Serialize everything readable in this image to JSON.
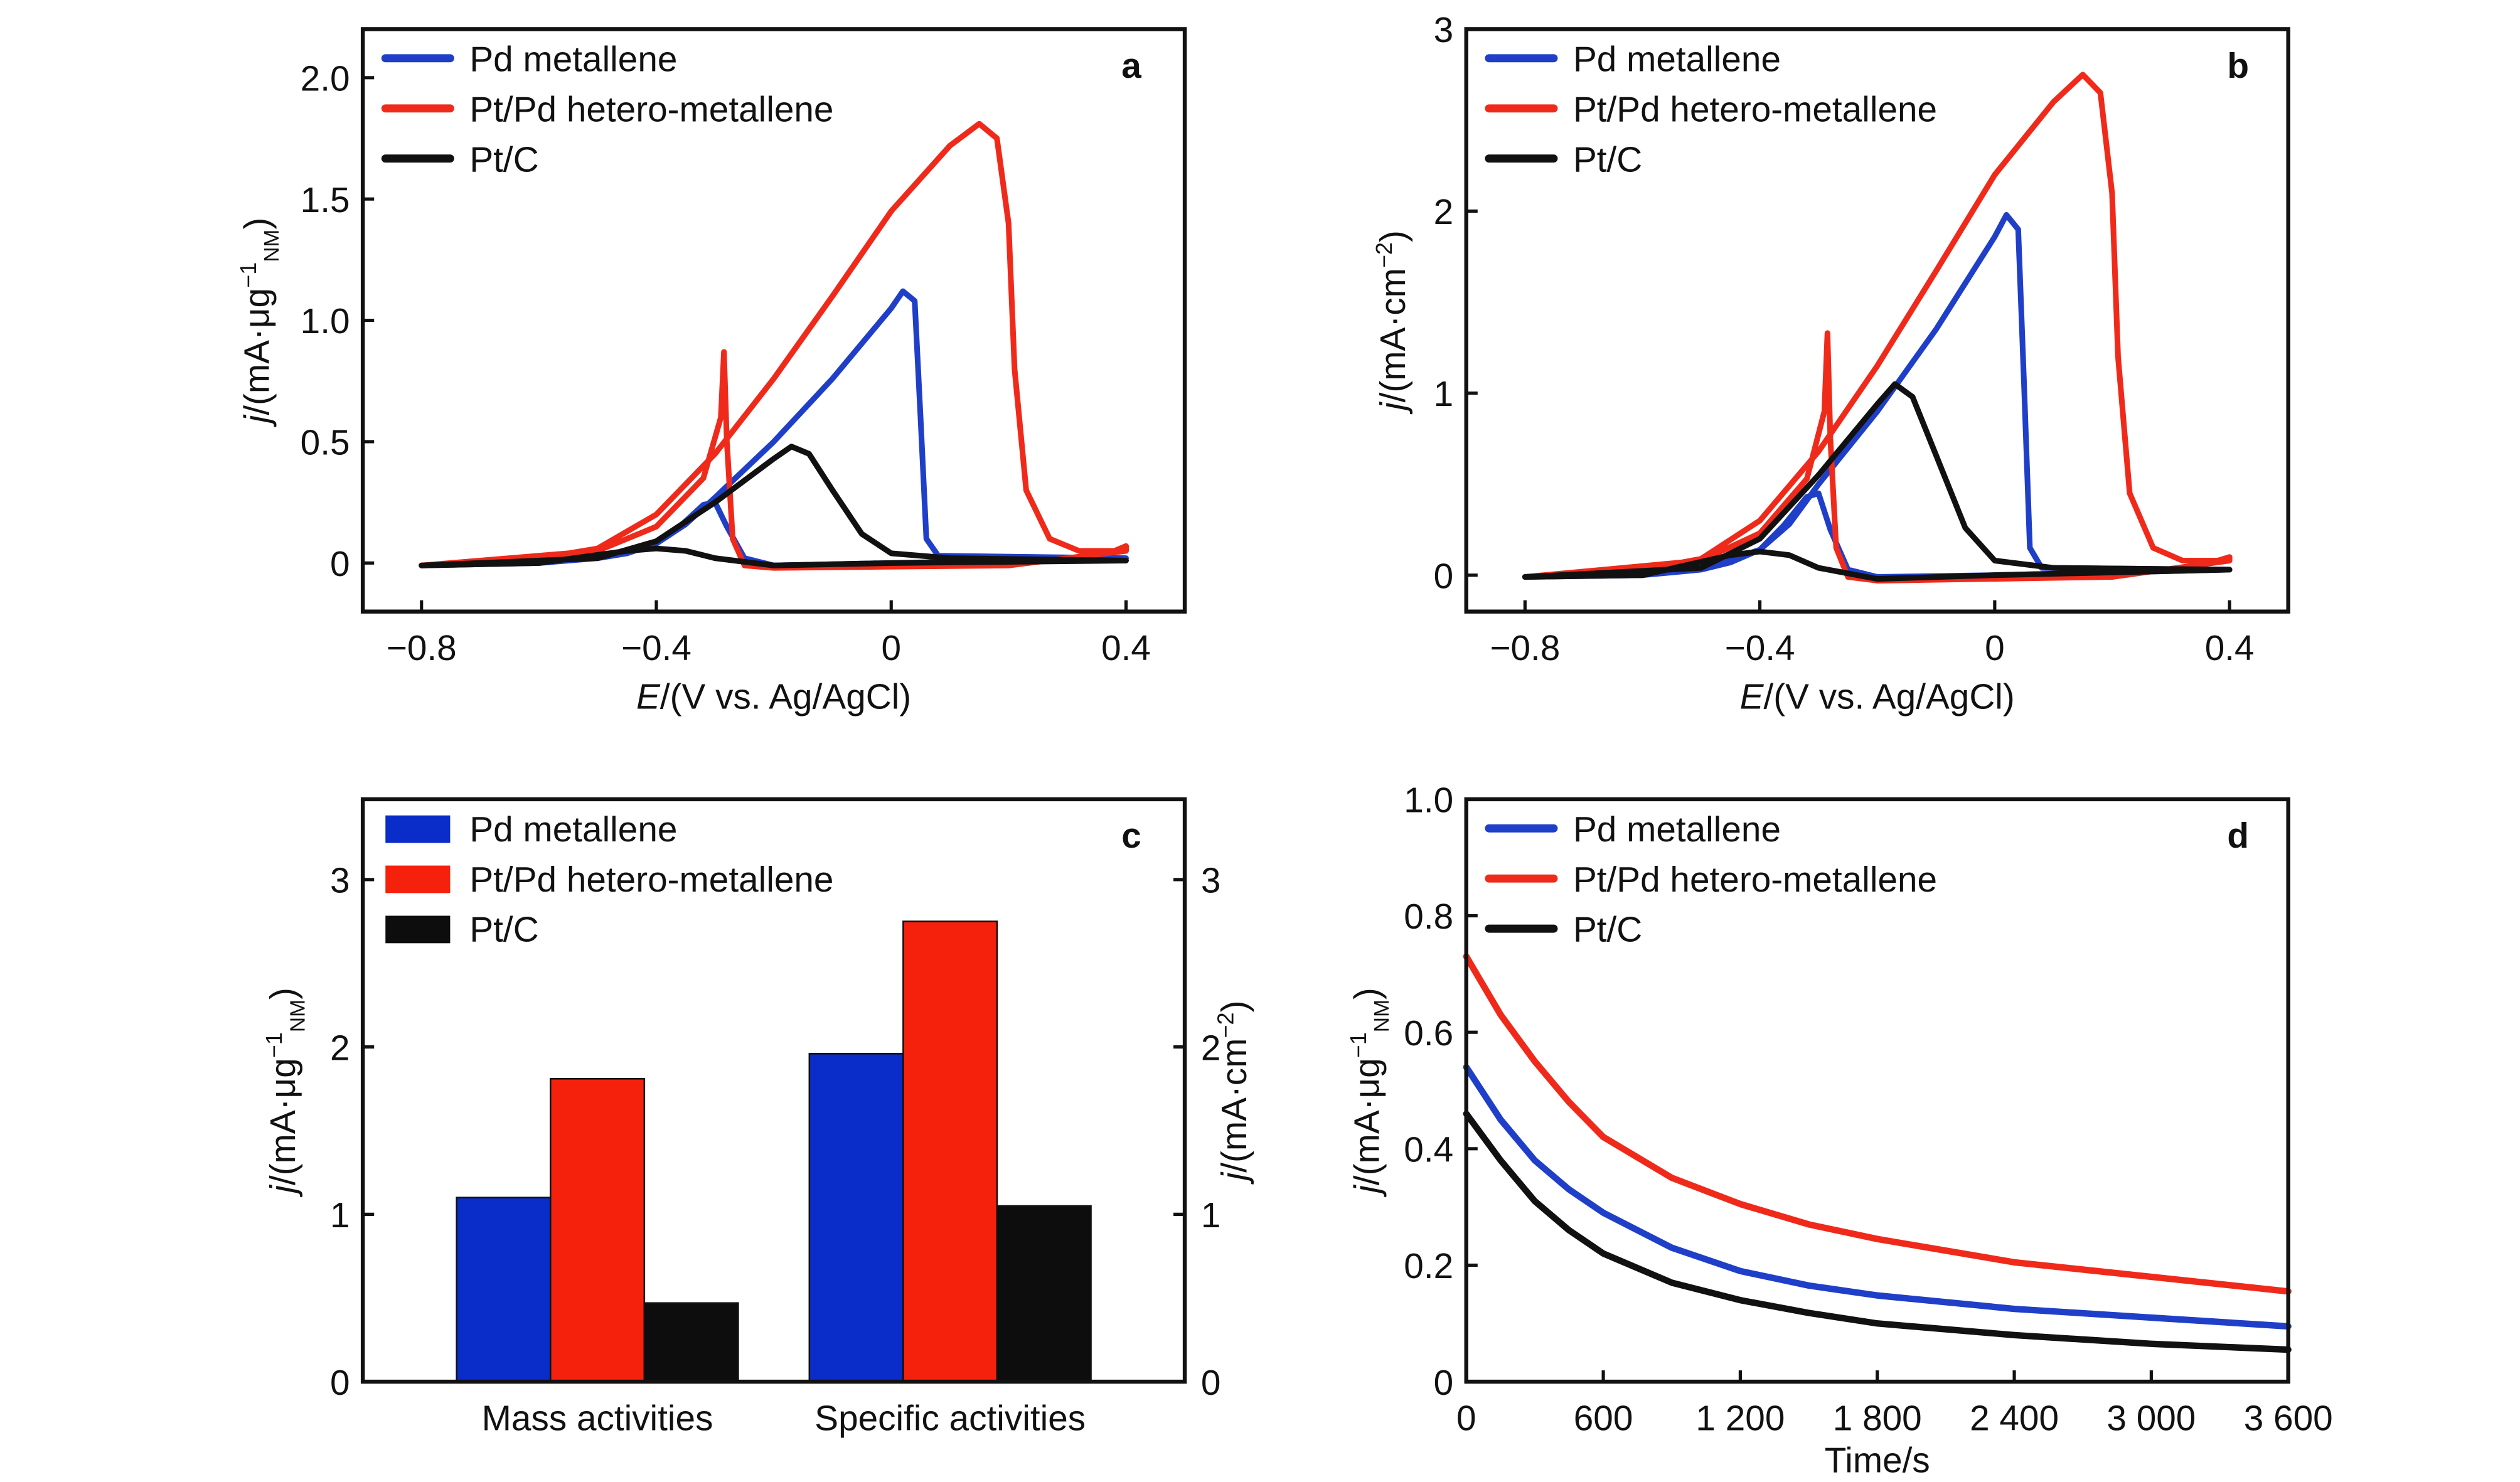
{
  "colors": {
    "pd": "#1f3fc8",
    "ptpd": "#f02a1a",
    "ptc": "#111111",
    "pd_bar": "#0a2cc8",
    "ptpd_bar": "#f5210d",
    "ptc_bar": "#0d0d0d"
  },
  "chart_data": [
    {
      "panel": "a",
      "type": "line",
      "xlim": [
        -0.9,
        0.5
      ],
      "ylim": [
        -0.2,
        2.2
      ],
      "xticks": [
        -0.8,
        -0.4,
        0,
        0.4
      ],
      "xtick_labels": [
        "−0.8",
        "−0.4",
        "0",
        "0.4"
      ],
      "yticks": [
        0,
        0.5,
        1.0,
        1.5,
        2.0
      ],
      "ytick_labels": [
        "0",
        "0.5",
        "1.0",
        "1.5",
        "2.0"
      ],
      "xlabel": {
        "italic": "E",
        "text": "/(V vs. Ag/AgCl)"
      },
      "ylabel": {
        "italic": "j",
        "text": "/(mA·μg",
        "sup": "−1",
        "sub": "NM",
        "close": ")"
      },
      "legend": "top-left",
      "series": [
        {
          "name": "Pd metallene",
          "color": "#1f3fc8",
          "x": [
            -0.8,
            -0.6,
            -0.5,
            -0.45,
            -0.4,
            -0.35,
            -0.3,
            -0.2,
            -0.1,
            0,
            0.02,
            0.04,
            0.05,
            0.06,
            0.08,
            0.4,
            0.4,
            0,
            -0.2,
            -0.25,
            -0.28,
            -0.3,
            -0.32,
            -0.36,
            -0.4,
            -0.5,
            -0.8
          ],
          "y": [
            -0.01,
            0,
            0.02,
            0.04,
            0.08,
            0.16,
            0.27,
            0.5,
            0.76,
            1.05,
            1.12,
            1.08,
            0.6,
            0.1,
            0.03,
            0.02,
            0.02,
            0.0,
            -0.01,
            0.02,
            0.15,
            0.25,
            0.24,
            0.15,
            0.08,
            0.02,
            -0.01
          ]
        },
        {
          "name": "Pt/Pd hetero-metallene",
          "color": "#f02a1a",
          "x": [
            -0.8,
            -0.6,
            -0.5,
            -0.4,
            -0.3,
            -0.2,
            -0.1,
            0,
            0.1,
            0.15,
            0.18,
            0.2,
            0.21,
            0.23,
            0.27,
            0.32,
            0.38,
            0.4,
            0.4,
            0.2,
            -0.2,
            -0.25,
            -0.27,
            -0.28,
            -0.285,
            -0.29,
            -0.32,
            -0.4,
            -0.5,
            -0.8
          ],
          "y": [
            -0.01,
            0.02,
            0.06,
            0.2,
            0.45,
            0.76,
            1.1,
            1.45,
            1.72,
            1.81,
            1.75,
            1.4,
            0.8,
            0.3,
            0.1,
            0.05,
            0.05,
            0.07,
            0.05,
            -0.01,
            -0.02,
            -0.01,
            0.1,
            0.5,
            0.87,
            0.6,
            0.35,
            0.15,
            0.05,
            -0.01
          ]
        },
        {
          "name": "Pt/C",
          "color": "#111111",
          "x": [
            -0.8,
            -0.5,
            -0.4,
            -0.3,
            -0.2,
            -0.17,
            -0.14,
            -0.1,
            -0.05,
            0,
            0.1,
            0.4,
            0.4,
            0,
            -0.2,
            -0.3,
            -0.35,
            -0.4,
            -0.45,
            -0.6,
            -0.8
          ],
          "y": [
            -0.01,
            0.02,
            0.09,
            0.25,
            0.43,
            0.48,
            0.45,
            0.3,
            0.12,
            0.04,
            0.02,
            0.01,
            0.01,
            0.0,
            -0.01,
            0.02,
            0.05,
            0.06,
            0.05,
            0.0,
            -0.01
          ]
        }
      ]
    },
    {
      "panel": "b",
      "type": "line",
      "xlim": [
        -0.9,
        0.5
      ],
      "ylim": [
        -0.2,
        3.0
      ],
      "xticks": [
        -0.8,
        -0.4,
        0,
        0.4
      ],
      "xtick_labels": [
        "−0.8",
        "−0.4",
        "0",
        "0.4"
      ],
      "yticks": [
        0,
        1,
        2,
        3
      ],
      "ytick_labels": [
        "0",
        "1",
        "2",
        "3"
      ],
      "xlabel": {
        "italic": "E",
        "text": "/(V vs. Ag/AgCl)"
      },
      "ylabel": {
        "italic": "j",
        "text": "/(mA·cm",
        "sup": "−2",
        "sub": "",
        "close": ")"
      },
      "legend": "top-left",
      "series": [
        {
          "name": "Pd metallene",
          "color": "#1f3fc8",
          "x": [
            -0.8,
            -0.6,
            -0.5,
            -0.45,
            -0.4,
            -0.35,
            -0.3,
            -0.2,
            -0.1,
            0,
            0.02,
            0.04,
            0.05,
            0.06,
            0.08,
            0.4,
            0.4,
            0,
            -0.2,
            -0.25,
            -0.28,
            -0.3,
            -0.32,
            -0.36,
            -0.4,
            -0.5,
            -0.8
          ],
          "y": [
            -0.01,
            0,
            0.03,
            0.07,
            0.14,
            0.28,
            0.5,
            0.9,
            1.35,
            1.86,
            1.98,
            1.9,
            1.05,
            0.15,
            0.04,
            0.03,
            0.03,
            0.0,
            -0.01,
            0.03,
            0.25,
            0.45,
            0.43,
            0.27,
            0.14,
            0.03,
            -0.01
          ]
        },
        {
          "name": "Pt/Pd hetero-metallene",
          "color": "#f02a1a",
          "x": [
            -0.8,
            -0.6,
            -0.5,
            -0.4,
            -0.3,
            -0.2,
            -0.1,
            0,
            0.1,
            0.15,
            0.18,
            0.2,
            0.21,
            0.23,
            0.27,
            0.32,
            0.38,
            0.4,
            0.4,
            0.2,
            -0.2,
            -0.25,
            -0.27,
            -0.28,
            -0.285,
            -0.29,
            -0.32,
            -0.4,
            -0.5,
            -0.8
          ],
          "y": [
            -0.01,
            0.03,
            0.09,
            0.3,
            0.68,
            1.15,
            1.67,
            2.2,
            2.6,
            2.75,
            2.65,
            2.1,
            1.2,
            0.45,
            0.15,
            0.08,
            0.08,
            0.1,
            0.08,
            -0.01,
            -0.03,
            -0.01,
            0.15,
            0.75,
            1.33,
            0.9,
            0.53,
            0.23,
            0.08,
            -0.01
          ]
        },
        {
          "name": "Pt/C",
          "color": "#111111",
          "x": [
            -0.8,
            -0.5,
            -0.4,
            -0.3,
            -0.2,
            -0.17,
            -0.14,
            -0.1,
            -0.05,
            0,
            0.1,
            0.4,
            0.4,
            0,
            -0.2,
            -0.3,
            -0.35,
            -0.4,
            -0.45,
            -0.6,
            -0.8
          ],
          "y": [
            -0.01,
            0.04,
            0.2,
            0.55,
            0.94,
            1.05,
            0.98,
            0.66,
            0.26,
            0.08,
            0.04,
            0.03,
            0.03,
            0.0,
            -0.02,
            0.04,
            0.11,
            0.13,
            0.11,
            0.0,
            -0.01
          ]
        }
      ]
    },
    {
      "panel": "c",
      "type": "bar",
      "categories": [
        "Mass activities",
        "Specific activities"
      ],
      "ylim": [
        0,
        3.48
      ],
      "yticks": [
        0,
        1,
        2,
        3
      ],
      "ytick_labels": [
        "0",
        "1",
        "2",
        "3"
      ],
      "y2ticks": [
        0,
        1,
        2,
        3
      ],
      "y2tick_labels": [
        "0",
        "1",
        "2",
        "3"
      ],
      "ylabel": {
        "italic": "j",
        "text": "/(mA·μg",
        "sup": "−1",
        "sub": "NM",
        "close": ")"
      },
      "y2label": {
        "italic": "j",
        "text": "/(mA·cm",
        "sup": "−2",
        "sub": "",
        "close": ")"
      },
      "legend": "top-left",
      "series": [
        {
          "name": "Pd metallene",
          "color": "#0a2cc8",
          "values": [
            1.1,
            1.96
          ]
        },
        {
          "name": "Pt/Pd hetero-metallene",
          "color": "#f5210d",
          "values": [
            1.81,
            2.75
          ]
        },
        {
          "name": "Pt/C",
          "color": "#0d0d0d",
          "values": [
            0.47,
            1.05
          ]
        }
      ]
    },
    {
      "panel": "d",
      "type": "line",
      "xlim": [
        0,
        3600
      ],
      "ylim": [
        0,
        1.0
      ],
      "xticks": [
        0,
        600,
        1200,
        1800,
        2400,
        3000,
        3600
      ],
      "xtick_labels": [
        "0",
        "600",
        "1 200",
        "1 800",
        "2 400",
        "3 000",
        "3 600"
      ],
      "yticks": [
        0,
        0.2,
        0.4,
        0.6,
        0.8,
        1.0
      ],
      "ytick_labels": [
        "0",
        "0.2",
        "0.4",
        "0.6",
        "0.8",
        "1.0"
      ],
      "xlabel": {
        "italic": "",
        "text": "Time/s"
      },
      "ylabel": {
        "italic": "j",
        "text": "/(mA·μg",
        "sup": "−1",
        "sub": "NM",
        "close": ")"
      },
      "legend": "top-left",
      "series": [
        {
          "name": "Pd metallene",
          "color": "#1f3fc8",
          "x": [
            0,
            150,
            300,
            450,
            600,
            900,
            1200,
            1500,
            1800,
            2400,
            3000,
            3600
          ],
          "y": [
            0.54,
            0.45,
            0.38,
            0.33,
            0.29,
            0.23,
            0.19,
            0.165,
            0.148,
            0.125,
            0.11,
            0.095
          ]
        },
        {
          "name": "Pt/Pd hetero-metallene",
          "color": "#f02a1a",
          "x": [
            0,
            150,
            300,
            450,
            600,
            900,
            1200,
            1500,
            1800,
            2400,
            3000,
            3600
          ],
          "y": [
            0.73,
            0.63,
            0.55,
            0.48,
            0.42,
            0.35,
            0.305,
            0.27,
            0.245,
            0.205,
            0.18,
            0.155
          ]
        },
        {
          "name": "Pt/C",
          "color": "#111111",
          "x": [
            0,
            150,
            300,
            450,
            600,
            900,
            1200,
            1500,
            1800,
            2400,
            3000,
            3600
          ],
          "y": [
            0.46,
            0.38,
            0.31,
            0.26,
            0.22,
            0.17,
            0.14,
            0.118,
            0.1,
            0.08,
            0.065,
            0.055
          ]
        }
      ]
    }
  ]
}
